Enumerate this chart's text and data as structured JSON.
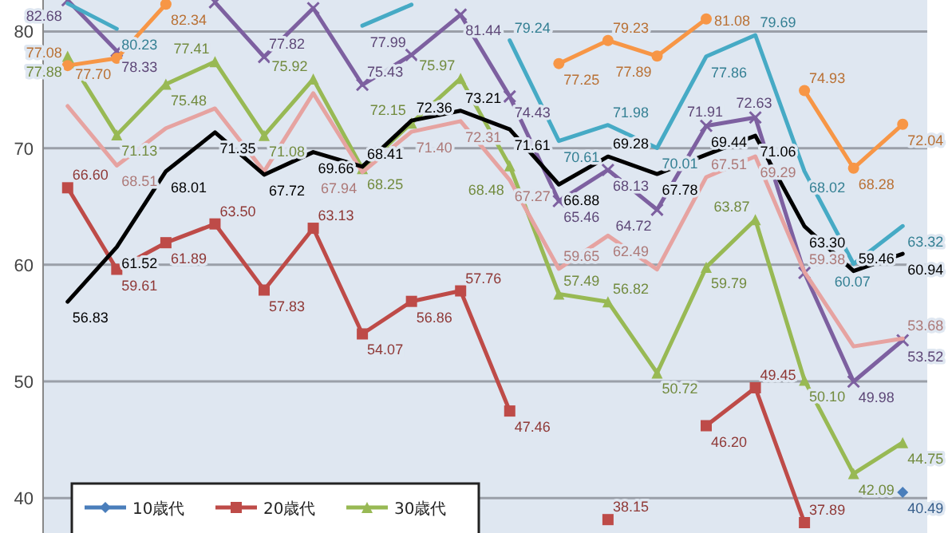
{
  "chart_data": {
    "type": "line",
    "categories": [
      null,
      null,
      null,
      null,
      null,
      null,
      null,
      null,
      null,
      null,
      null,
      null,
      null,
      null,
      null,
      null,
      null,
      null
    ],
    "ylim": [
      37,
      82.7
    ],
    "yticks": [
      40,
      50,
      60,
      70,
      80
    ],
    "grid": "y",
    "legend": "bottom left",
    "series": [
      {
        "name": "10歳代",
        "color": "#4a7ebb",
        "marker": "diamond",
        "values": [
          null,
          null,
          null,
          null,
          null,
          null,
          null,
          null,
          null,
          null,
          null,
          null,
          null,
          null,
          null,
          null,
          null,
          40.49
        ],
        "value_labels": [
          null,
          null,
          null,
          null,
          null,
          null,
          null,
          null,
          null,
          null,
          null,
          null,
          null,
          null,
          null,
          null,
          null,
          "40.49"
        ]
      },
      {
        "name": "20歳代",
        "color": "#be4b48",
        "marker": "square",
        "values": [
          66.6,
          59.61,
          61.89,
          63.5,
          57.83,
          63.13,
          54.07,
          56.86,
          57.76,
          47.46,
          null,
          38.15,
          null,
          46.2,
          49.45,
          37.89,
          null,
          null
        ],
        "value_labels": [
          "66.60",
          "59.61",
          "61.89",
          "63.50",
          "57.83",
          "63.13",
          "54.07",
          "56.86",
          "57.76",
          "47.46",
          null,
          "38.15",
          null,
          "46.20",
          "49.45",
          "37.89",
          null,
          null
        ]
      },
      {
        "name": "30歳代",
        "color": "#98b954",
        "marker": "triangle",
        "values": [
          77.88,
          71.13,
          75.48,
          77.41,
          71.08,
          75.92,
          68.25,
          72.15,
          75.97,
          68.48,
          57.49,
          56.82,
          50.72,
          59.79,
          63.87,
          50.1,
          42.09,
          44.75
        ],
        "value_labels": [
          "77.88",
          "71.13",
          "75.48",
          "77.41",
          "71.08",
          "75.92",
          "68.25",
          "72.15",
          "75.97",
          "68.48",
          "57.49",
          "56.82",
          "50.72",
          "59.79",
          "63.87",
          "50.10",
          "42.09",
          "44.75"
        ]
      },
      {
        "color": "#7d60a0",
        "marker": "cross",
        "values": [
          82.68,
          78.33,
          null,
          82.5,
          77.82,
          82.0,
          75.43,
          77.99,
          81.44,
          74.43,
          65.46,
          68.13,
          64.72,
          71.91,
          72.63,
          59.3,
          49.98,
          53.52
        ],
        "value_labels": [
          "82.68",
          "78.33",
          null,
          null,
          "77.82",
          null,
          "75.43",
          "77.99",
          "81.44",
          "74.43",
          "65.46",
          "68.13",
          "64.72",
          "71.91",
          "72.63",
          null,
          "49.98",
          "53.52"
        ]
      },
      {
        "color": "#46aac5",
        "marker": "none",
        "values": [
          82.4,
          80.23,
          null,
          null,
          null,
          null,
          80.5,
          82.3,
          null,
          79.24,
          70.61,
          71.98,
          70.01,
          77.86,
          79.69,
          68.02,
          60.07,
          63.32
        ],
        "value_labels": [
          null,
          "80.23",
          null,
          null,
          null,
          null,
          null,
          null,
          null,
          "79.24",
          "70.61",
          "71.98",
          "70.01",
          "77.86",
          "79.69",
          "68.02",
          "60.07",
          "63.32"
        ]
      },
      {
        "color": "#f79646",
        "marker": "circle",
        "values": [
          77.08,
          77.7,
          82.34,
          null,
          null,
          null,
          null,
          null,
          null,
          null,
          77.25,
          79.23,
          77.89,
          81.08,
          null,
          74.93,
          68.28,
          72.04
        ],
        "value_labels": [
          "77.08",
          "77.70",
          "82.34",
          null,
          null,
          null,
          null,
          null,
          null,
          null,
          "77.25",
          "79.23",
          "77.89",
          "81.08",
          null,
          "74.93",
          "68.28",
          "72.04"
        ]
      },
      {
        "color": "#e6a3a1",
        "marker": "none",
        "values": [
          73.6,
          68.51,
          71.7,
          73.4,
          68.0,
          74.7,
          67.94,
          71.4,
          72.31,
          67.27,
          59.65,
          62.49,
          59.6,
          67.51,
          69.29,
          59.38,
          53.0,
          53.68
        ],
        "value_labels": [
          null,
          "68.51",
          null,
          null,
          null,
          null,
          "67.94",
          "71.40",
          "72.31",
          "67.27",
          "59.65",
          "62.49",
          null,
          "67.51",
          "69.29",
          "59.38",
          null,
          "53.68"
        ]
      },
      {
        "color": "#000000",
        "marker": "none",
        "values": [
          56.83,
          61.52,
          68.01,
          71.35,
          67.72,
          69.66,
          68.41,
          72.36,
          73.21,
          71.61,
          66.88,
          69.28,
          67.78,
          69.44,
          71.06,
          63.3,
          59.46,
          60.94
        ],
        "value_labels": [
          "56.83",
          "61.52",
          "68.01",
          "71.35",
          "67.72",
          "69.66",
          "68.41",
          "72.36",
          "73.21",
          "71.61",
          "66.88",
          "69.28",
          "67.78",
          "69.44",
          "71.06",
          "63.30",
          "59.46",
          "60.94"
        ]
      }
    ]
  }
}
